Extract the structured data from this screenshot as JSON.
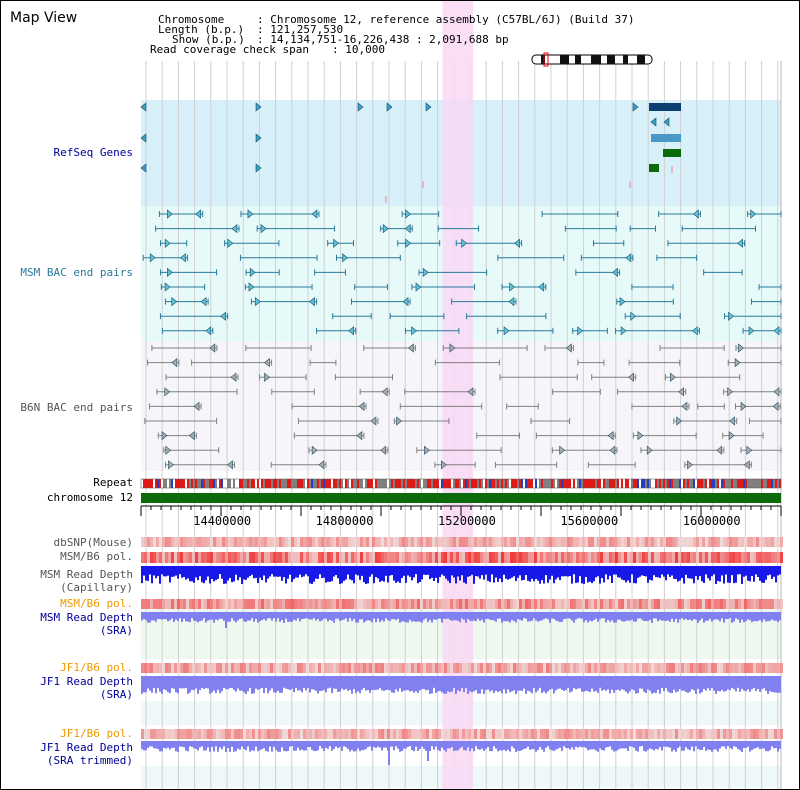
{
  "title": "Map View",
  "header": {
    "chromosome_key": "Chromosome",
    "chromosome_val": ": Chromosome 12, reference assembly (C57BL/6J) (Build 37)",
    "length_key": "Length (b.p.)",
    "length_val": ": 121,257,530",
    "show_key": "Show (b.p.)",
    "show_val": ": 14,134,751-16,226,438 : 2,091,688 bp",
    "read_cov_key": "Read coverage check span",
    "read_cov_val": ": 10,000"
  },
  "tracks": {
    "refseq_genes": "RefSeq Genes",
    "msm_bac": "MSM BAC end pairs",
    "b6n_bac": "B6N BAC end pairs",
    "repeat": "Repeat",
    "chromosome": "chromosome 12",
    "dbsnp": "dbSNP(Mouse)",
    "msm_b6_pol": "MSM/B6 pol.",
    "msm_read_depth_cap_1": "MSM Read Depth",
    "msm_read_depth_cap_2": "(Capillary)",
    "msm_b6_pol_2": "MSM/B6 pol.",
    "msm_read_depth_sra_1": "MSM Read Depth",
    "msm_read_depth_sra_2": "(SRA)",
    "jf1_b6_pol": "JF1/B6 pol.",
    "jf1_read_depth_sra_1": "JF1 Read Depth",
    "jf1_read_depth_sra_2": "(SRA)",
    "jf1_b6_pol_2": "JF1/B6 pol.",
    "jf1_read_depth_trim_1": "JF1 Read Depth",
    "jf1_read_depth_trim_2": "(SRA trimmed)"
  },
  "ruler": {
    "ticks": [
      {
        "label": "14400000",
        "value": 14400000
      },
      {
        "label": "14800000",
        "value": 14800000
      },
      {
        "label": "15200000",
        "value": 15200000
      },
      {
        "label": "15600000",
        "value": 15600000
      },
      {
        "label": "16000000",
        "value": 16000000
      }
    ],
    "range_start": 14134751,
    "range_end": 16226438
  },
  "highlight_region": {
    "start": 15120000,
    "end": 15220000
  },
  "colors": {
    "refseq_bg": "#d8f0fa",
    "msm_bac_bg": "#e6fafa",
    "b6n_bac_bg": "#f6f6fa",
    "highlight": "#f8d8f4",
    "bac_line": "#2a7a9a",
    "b6n_line": "#808080",
    "chrom_green": "#0b6b0b",
    "depth_blue": "#1818e8",
    "depth_light": "#8080f0",
    "pol_red": "#e83030",
    "label_blue": "#000099",
    "label_orange": "#ee9900"
  }
}
